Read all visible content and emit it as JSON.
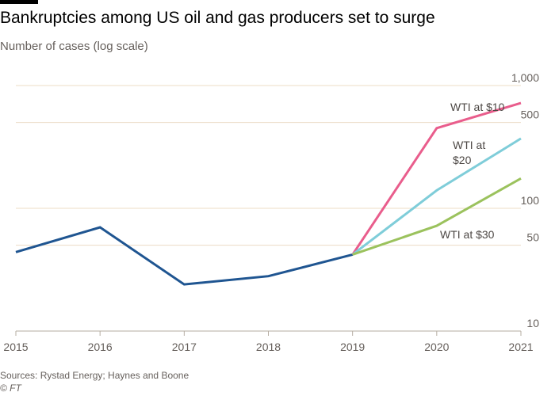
{
  "header": {
    "title": "Bankruptcies among US oil and gas producers set to surge",
    "subtitle": "Number of cases (log scale)"
  },
  "footer": {
    "source": "Sources: Rystad Energy; Haynes and Boone",
    "credit": "© FT"
  },
  "chart_data": {
    "type": "line",
    "title": "Bankruptcies among US oil and gas producers set to surge",
    "subtitle": "Number of cases (log scale)",
    "xlabel": "",
    "ylabel": "",
    "yscale": "log",
    "ylim": [
      10,
      1000
    ],
    "xlim": [
      2015,
      2021
    ],
    "grid": true,
    "legend": "inline labels",
    "x_ticks": [
      "2015",
      "2016",
      "2017",
      "2018",
      "2019",
      "2020",
      "2021"
    ],
    "y_ticks": [
      {
        "value": 1000,
        "label": "1,000"
      },
      {
        "value": 500,
        "label": "500"
      },
      {
        "value": 100,
        "label": "100"
      },
      {
        "value": 50,
        "label": "50"
      },
      {
        "value": 10,
        "label": "10"
      }
    ],
    "series": [
      {
        "color": "#1f5591",
        "points": [
          {
            "x": 2015,
            "y": 44
          },
          {
            "x": 2016,
            "y": 70
          },
          {
            "x": 2017,
            "y": 24
          },
          {
            "x": 2018,
            "y": 28
          },
          {
            "x": 2019,
            "y": 42
          }
        ]
      },
      {
        "name": "WTI at $10",
        "label_lines": [
          "WTI at $10"
        ],
        "color": "#e95d8c",
        "points": [
          {
            "x": 2019,
            "y": 42
          },
          {
            "x": 2020,
            "y": 450
          },
          {
            "x": 2021,
            "y": 720
          }
        ]
      },
      {
        "name": "WTI at $20",
        "label_lines": [
          "WTI at",
          "$20"
        ],
        "color": "#7fcdd9",
        "points": [
          {
            "x": 2019,
            "y": 42
          },
          {
            "x": 2020,
            "y": 140
          },
          {
            "x": 2021,
            "y": 370
          }
        ]
      },
      {
        "name": "WTI at $30",
        "label_lines": [
          "WTI at $30"
        ],
        "color": "#9bc25d",
        "points": [
          {
            "x": 2019,
            "y": 42
          },
          {
            "x": 2020,
            "y": 72
          },
          {
            "x": 2021,
            "y": 175
          }
        ]
      }
    ]
  },
  "style": {
    "grid_color": "#ecdcc4",
    "axis_color": "#b6ada2",
    "tick_text_color": "#66605c"
  }
}
